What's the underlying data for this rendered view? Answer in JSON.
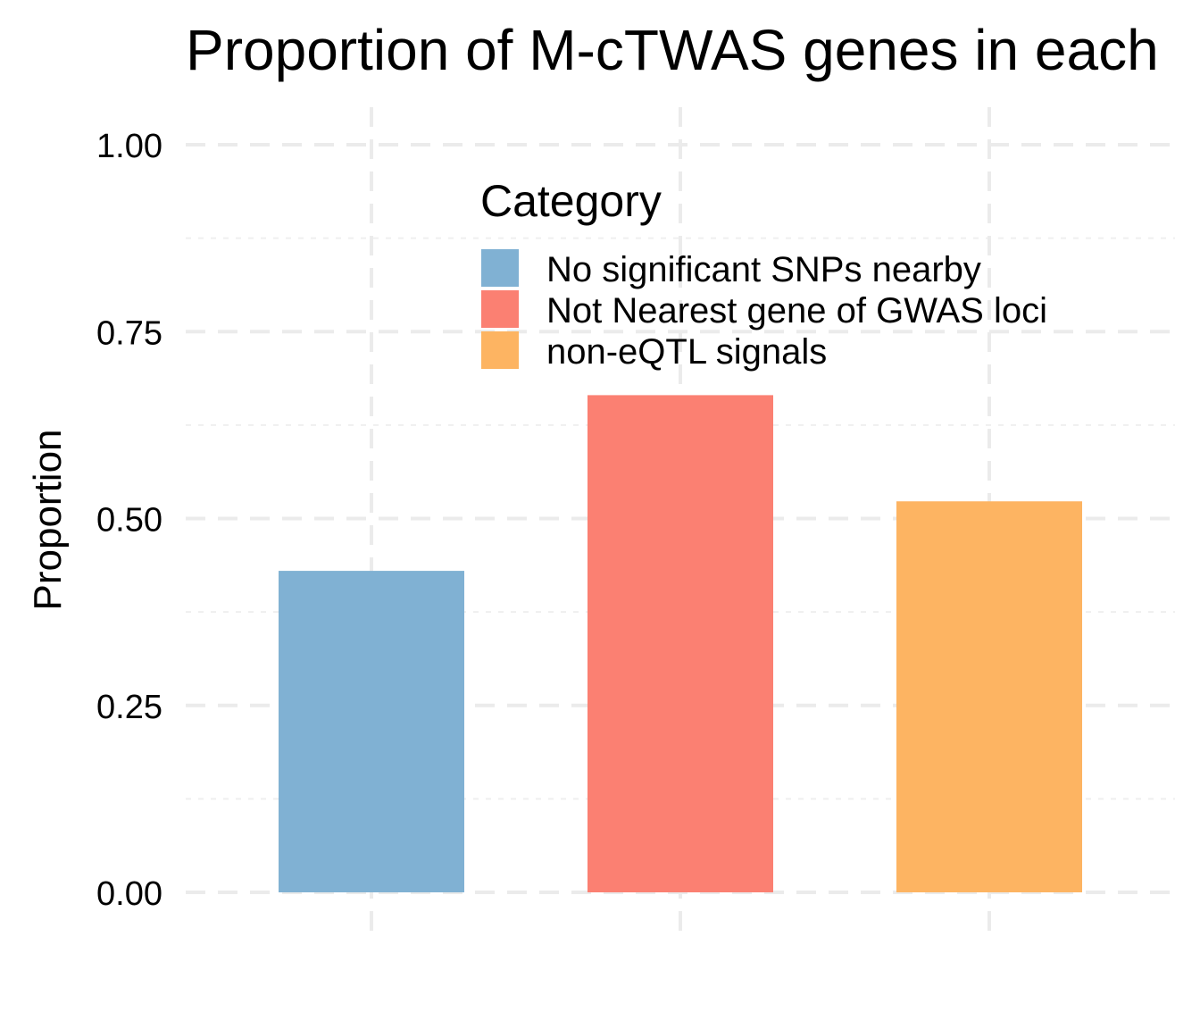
{
  "chart_data": {
    "type": "bar",
    "title": "Proportion of M-cTWAS genes in each",
    "xlabel": "",
    "ylabel": "Proportion",
    "ylim": [
      0,
      1
    ],
    "yticks": [
      "0.00",
      "0.25",
      "0.50",
      "0.75",
      "1.00"
    ],
    "categories": [
      "No significant SNPs nearby",
      "Not Nearest gene of GWAS loci",
      "non-eQTL signals"
    ],
    "values": [
      0.43,
      0.665,
      0.523
    ],
    "colors": [
      "#80B1D3",
      "#FB8072",
      "#FDB462"
    ],
    "legend": {
      "title": "Category",
      "placement": "top-center",
      "entries": [
        "No significant SNPs nearby",
        "Not Nearest gene of GWAS loci",
        "non-eQTL signals"
      ]
    },
    "grid": true
  }
}
